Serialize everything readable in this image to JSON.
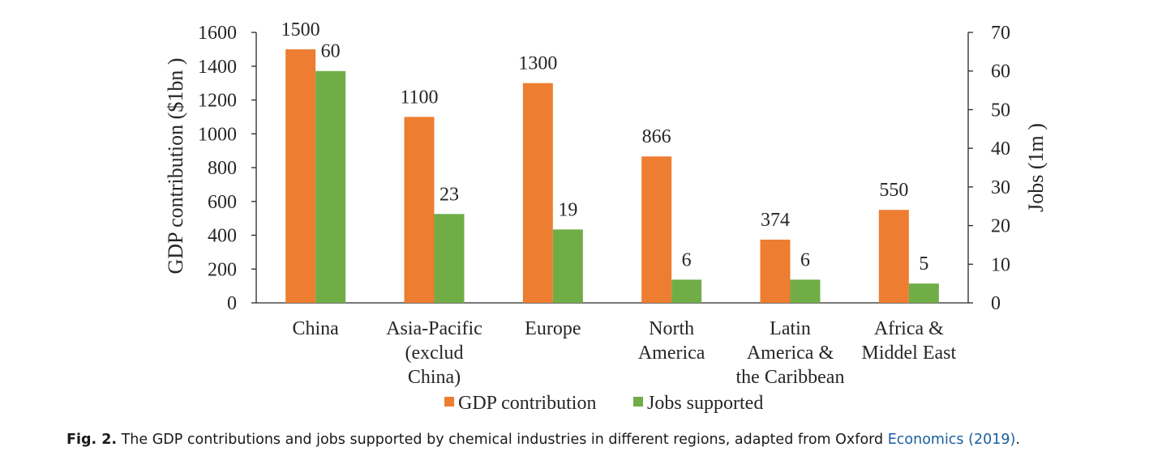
{
  "chart_data": {
    "type": "bar",
    "categories": [
      [
        "China"
      ],
      [
        "Asia-Pacific",
        "(exclud",
        "China)"
      ],
      [
        "Europe"
      ],
      [
        "North",
        "America"
      ],
      [
        "Latin",
        "America &",
        "the Caribbean"
      ],
      [
        "Africa &",
        "Middel East"
      ]
    ],
    "series": [
      {
        "name": "GDP contribution",
        "axis": "left",
        "color": "#ED7D31",
        "values": [
          1500,
          1100,
          1300,
          866,
          374,
          550
        ],
        "labels": [
          "1500",
          "1100",
          "1300",
          "866",
          "374",
          "550"
        ]
      },
      {
        "name": "Jobs supported",
        "axis": "right",
        "color": "#70AD47",
        "values": [
          60,
          23,
          19,
          6,
          6,
          5
        ],
        "labels": [
          "60",
          "23",
          "19",
          "6",
          "6",
          "5"
        ]
      }
    ],
    "ylabel": "GDP contribution ($1bn )",
    "y2label": "Jobs (1m )",
    "ylim": [
      0,
      1600
    ],
    "y2lim": [
      0,
      70
    ],
    "yticks": [
      "0",
      "200",
      "400",
      "600",
      "800",
      "1000",
      "1200",
      "1400",
      "1600"
    ],
    "y2ticks": [
      "0",
      "10",
      "20",
      "30",
      "40",
      "50",
      "60",
      "70"
    ],
    "legend_position": "bottom",
    "grid": false
  },
  "caption": {
    "label": "Fig. 2.",
    "text": " The GDP contributions and jobs supported by chemical industries in different regions, adapted from Oxford ",
    "citation": "Economics (2019)",
    "end": "."
  }
}
